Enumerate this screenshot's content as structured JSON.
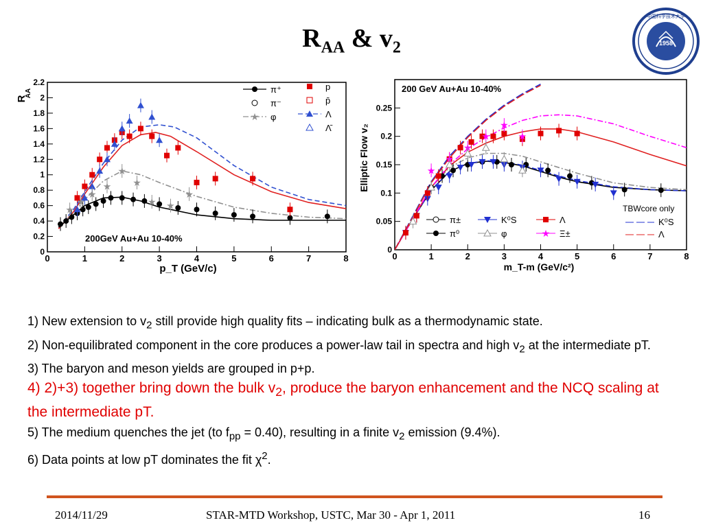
{
  "slide": {
    "title_main": "R",
    "title_sub": "AA",
    "title_mid": " & v",
    "title_sub2": "2",
    "logo_year": "1958"
  },
  "bullets": [
    {
      "text": "1) New extension to v",
      "sub": "2",
      "after": " still provide high quality fits – indicating bulk as a thermodynamic state.",
      "color": "#000000"
    },
    {
      "text": "2) Non-equilibrated component in the core produces a power-law tail in spectra and high v",
      "sub": "2",
      "after": " at the intermediate pT.",
      "color": "#000000"
    },
    {
      "text": "3) The baryon and meson yields are grouped in p+p.",
      "sub": "",
      "after": "",
      "color": "#000000"
    },
    {
      "text": "4) 2)+3) together bring down the bulk v",
      "sub": "2",
      "after": ", produce the baryon enhancement and the NCQ scaling at the intermediate pT.",
      "color": "#e00000"
    },
    {
      "text": "5) The medium quenches the jet (to f",
      "sub": "pp",
      "after": " = 0.40), resulting in a finite v",
      "sub2": "2",
      "after2": " emission (9.4%).",
      "color": "#000000"
    },
    {
      "text": "6) Data points at low pT dominates the fit χ",
      "sup": "2",
      "after": ".",
      "color": "#000000"
    }
  ],
  "footer": {
    "date": "2014/11/29",
    "event": "STAR-MTD Workshop, USTC, Mar 30 - Apr 1, 2011",
    "page": "16"
  },
  "colors": {
    "accent_line": "#d0541e",
    "red": "#e00000",
    "blue": "#2030d0"
  },
  "chart_data": [
    {
      "type": "scatter",
      "title": "",
      "annotation": "200GeV Au+Au 10-40%",
      "xlabel": "p_T (GeV/c)",
      "ylabel": "R_AA",
      "xlim": [
        0,
        8
      ],
      "ylim": [
        0,
        2.2
      ],
      "xticks": [
        "0",
        "1",
        "2",
        "3",
        "4",
        "5",
        "6",
        "7",
        "8"
      ],
      "yticks": [
        "0",
        "0.2",
        "0.4",
        "0.6",
        "0.8",
        "1",
        "1.2",
        "1.4",
        "1.6",
        "1.8",
        "2",
        "2.2"
      ],
      "legend": [
        "π⁺",
        "π⁻",
        "φ",
        "p",
        "p̄",
        "Λ",
        "Λ̄"
      ],
      "series": [
        {
          "name": "π⁺",
          "color": "#000000",
          "marker": "filled-circle",
          "x": [
            0.35,
            0.5,
            0.65,
            0.8,
            0.95,
            1.1,
            1.3,
            1.5,
            1.7,
            2.0,
            2.3,
            2.6,
            3.0,
            3.5,
            4.0,
            4.5,
            5.0,
            5.5,
            6.5,
            7.5
          ],
          "y": [
            0.36,
            0.4,
            0.45,
            0.5,
            0.55,
            0.58,
            0.62,
            0.66,
            0.7,
            0.7,
            0.68,
            0.66,
            0.62,
            0.57,
            0.55,
            0.5,
            0.48,
            0.46,
            0.44,
            0.46
          ]
        },
        {
          "name": "p",
          "color": "#e00000",
          "marker": "filled-square",
          "x": [
            0.8,
            1.0,
            1.2,
            1.4,
            1.6,
            1.8,
            2.0,
            2.2,
            2.5,
            2.8,
            3.2,
            3.5,
            4.0,
            4.5,
            5.5,
            6.5
          ],
          "y": [
            0.7,
            0.85,
            1.0,
            1.2,
            1.35,
            1.45,
            1.55,
            1.5,
            1.6,
            1.5,
            1.25,
            1.35,
            0.9,
            0.95,
            0.95,
            0.55
          ]
        },
        {
          "name": "Λ",
          "color": "#3050d0",
          "marker": "filled-triangle",
          "x": [
            0.8,
            1.0,
            1.2,
            1.4,
            1.6,
            1.8,
            2.0,
            2.2,
            2.5,
            2.8,
            3.0
          ],
          "y": [
            0.55,
            0.7,
            0.85,
            1.05,
            1.2,
            1.4,
            1.6,
            1.7,
            1.9,
            1.75,
            1.45
          ]
        },
        {
          "name": "φ",
          "color": "#909090",
          "marker": "open-star",
          "x": [
            0.6,
            0.9,
            1.2,
            1.6,
            2.0,
            2.4,
            2.8,
            3.3,
            3.8
          ],
          "y": [
            0.55,
            0.65,
            0.75,
            0.85,
            1.05,
            0.9,
            0.65,
            0.6,
            0.75
          ]
        }
      ],
      "curves": [
        {
          "name": "proton fit",
          "color": "#e02020",
          "dash": "solid",
          "x": [
            0.3,
            0.7,
            1.0,
            1.5,
            2.0,
            2.5,
            2.9,
            3.3,
            4.0,
            5.0,
            6.0,
            7.0,
            8.0
          ],
          "y": [
            0.3,
            0.52,
            0.75,
            1.1,
            1.38,
            1.52,
            1.55,
            1.5,
            1.3,
            1.0,
            0.78,
            0.64,
            0.56
          ]
        },
        {
          "name": "Λ fit",
          "color": "#3050d0",
          "dash": "dashed",
          "x": [
            0.3,
            0.7,
            1.0,
            1.5,
            2.0,
            2.5,
            3.0,
            3.4,
            4.0,
            5.0,
            6.0,
            7.0,
            8.0
          ],
          "y": [
            0.32,
            0.55,
            0.78,
            1.15,
            1.45,
            1.62,
            1.65,
            1.62,
            1.48,
            1.12,
            0.84,
            0.68,
            0.6
          ]
        },
        {
          "name": "φ fit",
          "color": "#909090",
          "dash": "dashdot",
          "x": [
            0.3,
            0.7,
            1.0,
            1.5,
            2.0,
            2.5,
            3.0,
            4.0,
            5.0,
            6.0,
            7.0,
            8.0
          ],
          "y": [
            0.32,
            0.5,
            0.68,
            0.92,
            1.05,
            1.0,
            0.9,
            0.72,
            0.58,
            0.5,
            0.45,
            0.43
          ]
        },
        {
          "name": "π fit",
          "color": "#000000",
          "dash": "solid",
          "x": [
            0.3,
            0.7,
            1.0,
            1.5,
            2.0,
            2.5,
            3.0,
            4.0,
            5.0,
            6.0,
            7.0,
            8.0
          ],
          "y": [
            0.32,
            0.48,
            0.6,
            0.7,
            0.71,
            0.66,
            0.58,
            0.48,
            0.43,
            0.41,
            0.41,
            0.41
          ]
        }
      ]
    },
    {
      "type": "scatter",
      "title": "",
      "annotation": "200 GeV Au+Au 10-40%",
      "xlabel": "m_T-m (GeV/c²)",
      "ylabel": "Elliptic Flow v₂",
      "xlim": [
        0,
        8
      ],
      "ylim": [
        0,
        0.3
      ],
      "xticks": [
        "0",
        "1",
        "2",
        "3",
        "4",
        "5",
        "6",
        "7",
        "8"
      ],
      "yticks": [
        "0",
        "0.05",
        "0.1",
        "0.15",
        "0.2",
        "0.25"
      ],
      "legend": [
        "π±",
        "π⁰",
        "K⁰S",
        "φ",
        "Λ",
        "Ξ±"
      ],
      "legend2_title": "TBWcore only",
      "legend2": [
        "K⁰S",
        "Λ"
      ],
      "series": [
        {
          "name": "π⁰",
          "color": "#000000",
          "marker": "filled-circle",
          "x": [
            1.0,
            1.3,
            1.6,
            2.0,
            2.4,
            2.8,
            3.2,
            3.6,
            4.2,
            4.8,
            5.4,
            6.3,
            7.3
          ],
          "y": [
            0.11,
            0.13,
            0.14,
            0.15,
            0.155,
            0.155,
            0.15,
            0.15,
            0.14,
            0.13,
            0.118,
            0.106,
            0.105
          ]
        },
        {
          "name": "K⁰S",
          "color": "#2030d0",
          "marker": "filled-triangle-down",
          "x": [
            0.3,
            0.6,
            0.9,
            1.2,
            1.5,
            1.8,
            2.1,
            2.4,
            2.7,
            3.0,
            3.5,
            4.0,
            4.5,
            5.0,
            5.5,
            6.0
          ],
          "y": [
            0.03,
            0.06,
            0.09,
            0.11,
            0.13,
            0.145,
            0.15,
            0.155,
            0.155,
            0.15,
            0.145,
            0.14,
            0.125,
            0.12,
            0.115,
            0.1
          ]
        },
        {
          "name": "Λ",
          "color": "#e00000",
          "marker": "filled-square",
          "x": [
            0.3,
            0.6,
            0.9,
            1.2,
            1.5,
            1.8,
            2.1,
            2.4,
            2.7,
            3.0,
            3.5,
            4.0,
            4.5,
            5.0
          ],
          "y": [
            0.03,
            0.06,
            0.1,
            0.13,
            0.16,
            0.18,
            0.19,
            0.2,
            0.2,
            0.205,
            0.195,
            0.205,
            0.21,
            0.205
          ]
        },
        {
          "name": "Ξ±",
          "color": "#ff00ff",
          "marker": "star",
          "x": [
            1.0,
            1.5,
            2.0,
            2.5,
            3.0,
            3.5
          ],
          "y": [
            0.14,
            0.16,
            0.18,
            0.2,
            0.22,
            0.2
          ]
        },
        {
          "name": "φ",
          "color": "#909090",
          "marker": "open-triangle",
          "x": [
            0.5,
            1.0,
            1.5,
            2.0,
            2.5,
            3.0,
            3.5
          ],
          "y": [
            0.05,
            0.11,
            0.15,
            0.17,
            0.18,
            0.16,
            0.14
          ]
        }
      ],
      "curves": [
        {
          "name": "π fit",
          "color": "#000000",
          "dash": "solid",
          "x": [
            0.0,
            0.5,
            1.0,
            1.5,
            2.0,
            2.5,
            3.0,
            3.5,
            4.0,
            4.5,
            5.0,
            6.0,
            7.0,
            8.0
          ],
          "y": [
            0.0,
            0.055,
            0.105,
            0.138,
            0.152,
            0.156,
            0.154,
            0.148,
            0.138,
            0.128,
            0.12,
            0.11,
            0.106,
            0.104
          ]
        },
        {
          "name": "K⁰S fit",
          "color": "#2030d0",
          "dash": "dashed",
          "x": [
            0.0,
            0.5,
            1.0,
            1.5,
            2.0,
            2.5,
            3.0,
            3.5,
            4.0,
            4.5,
            5.0,
            6.0,
            7.0,
            8.0
          ],
          "y": [
            0.0,
            0.055,
            0.105,
            0.138,
            0.152,
            0.157,
            0.155,
            0.149,
            0.14,
            0.13,
            0.122,
            0.111,
            0.106,
            0.104
          ]
        },
        {
          "name": "φ fit",
          "color": "#909090",
          "dash": "dashdot",
          "x": [
            0.0,
            0.5,
            1.0,
            1.5,
            2.0,
            2.5,
            3.0,
            3.5,
            4.0,
            5.0,
            6.0,
            7.0,
            8.0
          ],
          "y": [
            0.0,
            0.055,
            0.11,
            0.145,
            0.162,
            0.17,
            0.17,
            0.165,
            0.155,
            0.135,
            0.118,
            0.11,
            0.106
          ]
        },
        {
          "name": "Λ fit",
          "color": "#e02020",
          "dash": "solid",
          "x": [
            0.0,
            0.5,
            1.0,
            1.5,
            2.0,
            2.5,
            3.0,
            3.5,
            4.0,
            4.5,
            5.0,
            6.0,
            7.0,
            8.0
          ],
          "y": [
            0.0,
            0.055,
            0.11,
            0.148,
            0.172,
            0.188,
            0.2,
            0.208,
            0.213,
            0.213,
            0.208,
            0.19,
            0.168,
            0.148
          ]
        },
        {
          "name": "Ξ fit",
          "color": "#ff00ff",
          "dash": "dashdot",
          "x": [
            0.0,
            0.5,
            1.0,
            1.5,
            2.0,
            2.5,
            3.0,
            3.5,
            4.0,
            4.5,
            5.0,
            6.0,
            7.0,
            8.0
          ],
          "y": [
            0.0,
            0.055,
            0.11,
            0.15,
            0.178,
            0.198,
            0.215,
            0.228,
            0.236,
            0.238,
            0.236,
            0.222,
            0.2,
            0.18
          ]
        },
        {
          "name": "TBW K⁰S",
          "color": "#2030d0",
          "dash": "longdash",
          "x": [
            0.0,
            0.5,
            1.0,
            1.5,
            2.0,
            2.5,
            3.0,
            3.5,
            4.0
          ],
          "y": [
            0.0,
            0.06,
            0.12,
            0.165,
            0.2,
            0.23,
            0.255,
            0.275,
            0.292
          ]
        },
        {
          "name": "TBW Λ",
          "color": "#e02020",
          "dash": "longdash",
          "x": [
            0.0,
            0.5,
            1.0,
            1.5,
            2.0,
            2.5,
            3.0,
            3.5,
            4.0
          ],
          "y": [
            0.0,
            0.058,
            0.118,
            0.162,
            0.198,
            0.228,
            0.253,
            0.273,
            0.29
          ]
        }
      ]
    }
  ]
}
